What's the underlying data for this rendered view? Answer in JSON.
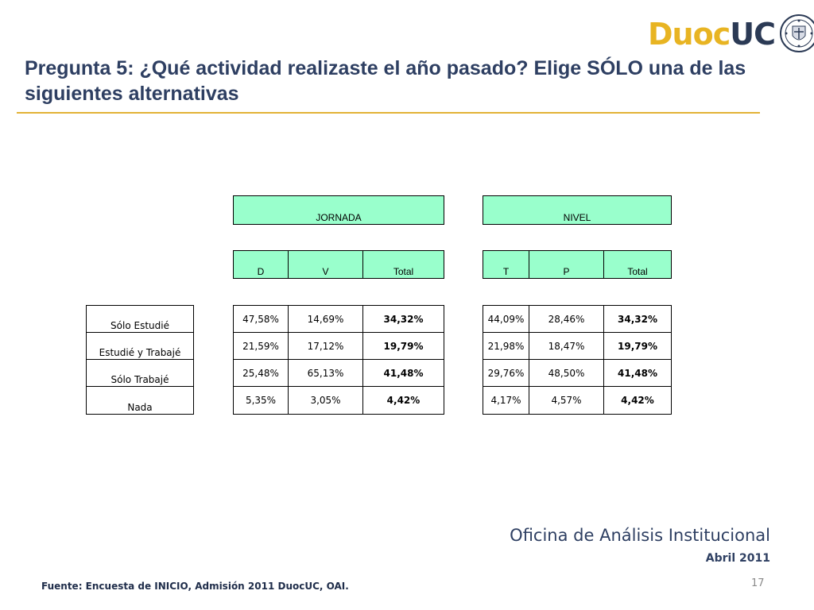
{
  "header": {
    "logo": {
      "duoc": "Duoc",
      "uc": "UC"
    },
    "title": "Pregunta 5: ¿Qué actividad realizaste el año pasado? Elige SÓLO una de las siguientes alternativas"
  },
  "table": {
    "groups": [
      {
        "label": "JORNADA",
        "columns": [
          "D",
          "V",
          "Total"
        ]
      },
      {
        "label": "NIVEL",
        "columns": [
          "T",
          "P",
          "Total"
        ]
      }
    ],
    "rows": [
      {
        "label": "Sólo Estudié",
        "jornada": [
          "47,58%",
          "14,69%",
          "34,32%"
        ],
        "nivel": [
          "44,09%",
          "28,46%",
          "34,32%"
        ]
      },
      {
        "label": "Estudié y Trabajé",
        "jornada": [
          "21,59%",
          "17,12%",
          "19,79%"
        ],
        "nivel": [
          "21,98%",
          "18,47%",
          "19,79%"
        ]
      },
      {
        "label": "Sólo Trabajé",
        "jornada": [
          "25,48%",
          "65,13%",
          "41,48%"
        ],
        "nivel": [
          "29,76%",
          "48,50%",
          "41,48%"
        ]
      },
      {
        "label": "Nada",
        "jornada": [
          "5,35%",
          "3,05%",
          "4,42%"
        ],
        "nivel": [
          "4,17%",
          "4,57%",
          "4,42%"
        ]
      }
    ]
  },
  "footer": {
    "office": "Oficina de Análisis Institucional",
    "date": "Abril 2011",
    "source": "Fuente: Encuesta de INICIO, Admisión 2011 DuocUC, OAI.",
    "page_number": "17"
  },
  "colors": {
    "title": "#2e3f62",
    "accent": "#e2b236",
    "header_fill": "#99ffcc"
  }
}
